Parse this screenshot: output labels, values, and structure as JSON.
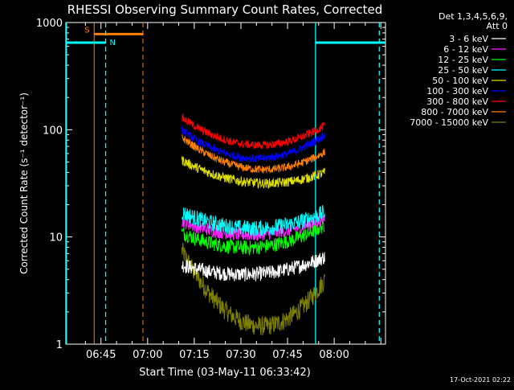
{
  "chart_data": {
    "type": "line",
    "title": "RHESSI Observing Summary Count Rates, Corrected",
    "xlabel": "Start Time (03-May-11 06:33:42)",
    "ylabel": "Corrected Count Rate (s⁻¹ detector⁻¹)",
    "yscale": "log",
    "ylim": [
      1,
      1000
    ],
    "xlim_minutes": [
      33.7,
      136.5
    ],
    "x_ticks": [
      {
        "label": "06:45",
        "t": 45
      },
      {
        "label": "07:00",
        "t": 60
      },
      {
        "label": "07:15",
        "t": 75
      },
      {
        "label": "07:30",
        "t": 90
      },
      {
        "label": "07:45",
        "t": 105
      },
      {
        "label": "08:00",
        "t": 120
      }
    ],
    "y_ticks": [
      {
        "label": "1000",
        "v": 1000
      },
      {
        "label": "100",
        "v": 100
      },
      {
        "label": "10",
        "v": 10
      },
      {
        "label": "1",
        "v": 1
      }
    ],
    "legend_header": [
      "Det 1,3,4,5,6,9,",
      "Att 0"
    ],
    "legend_position": "right",
    "series": [
      {
        "name": "3 - 6 keV",
        "color": "#ffffff",
        "start": 5.5,
        "mid": 4.5,
        "end": 6.5,
        "noise": 0.9
      },
      {
        "name": "6 - 12 keV",
        "color": "#ff20ff",
        "start": 14,
        "mid": 10.5,
        "end": 15,
        "noise": 0.8
      },
      {
        "name": "12 - 25 keV",
        "color": "#00ff00",
        "start": 11,
        "mid": 8,
        "end": 13,
        "noise": 0.9
      },
      {
        "name": "25 - 50 keV",
        "color": "#00ffff",
        "start": 17,
        "mid": 12,
        "end": 17,
        "noise": 1.0
      },
      {
        "name": "50 - 100 keV",
        "color": "#e0e000",
        "start": 52,
        "mid": 32,
        "end": 40,
        "noise": 0.6
      },
      {
        "name": "100 - 300 keV",
        "color": "#0000ff",
        "start": 100,
        "mid": 54,
        "end": 90,
        "noise": 0.5
      },
      {
        "name": "300 - 800 keV",
        "color": "#ff0000",
        "start": 130,
        "mid": 72,
        "end": 110,
        "noise": 0.5
      },
      {
        "name": "800 - 7000 keV",
        "color": "#ff8000",
        "start": 85,
        "mid": 43,
        "end": 62,
        "noise": 0.5
      },
      {
        "name": "7000 - 15000 keV",
        "color": "#808000",
        "start": 7.5,
        "mid": 1.5,
        "end": 4,
        "noise": 1.2
      }
    ],
    "time_range": [
      71,
      117
    ],
    "annotations": {
      "saa_label": "S",
      "night_label": "N",
      "orange_flag_level": 780,
      "cyan_flag_level": 650,
      "saa_interval": [
        42.8,
        58.5
      ],
      "night_intervals": [
        [
          33.7,
          46.5
        ],
        [
          114,
          136.5
        ]
      ],
      "orange_solid_vlines": [
        42.8
      ],
      "orange_dashed_vlines": [
        58.5
      ],
      "cyan_solid_vlines": [
        33.9,
        114
      ],
      "cyan_dashed_vlines": [
        46.5,
        134.5
      ]
    }
  },
  "footer": {
    "timestamp": "17-Oct-2021 02:22"
  }
}
